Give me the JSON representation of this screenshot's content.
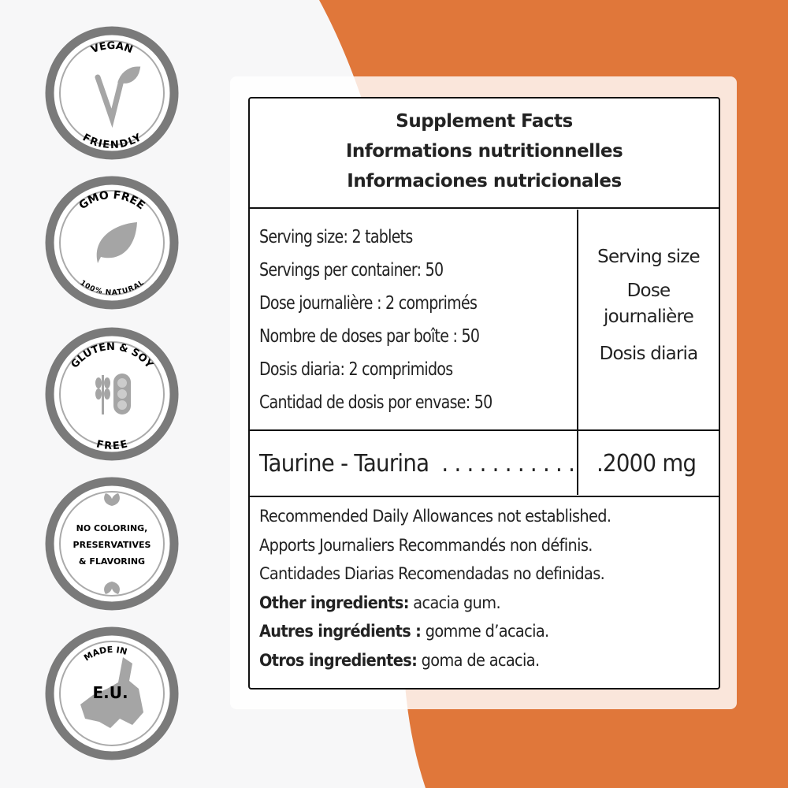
{
  "colors": {
    "accent": "#E0773A",
    "badge_ring": "#7a7a7a",
    "icon_gray": "#a5a5a5"
  },
  "badges": [
    {
      "top": "VEGAN",
      "bottom": "FRIENDLY",
      "icon": "vegan-v-leaf-icon"
    },
    {
      "top": "GMO FREE",
      "bottom": "100% NATURAL",
      "icon": "leaf-icon"
    },
    {
      "top": "GLUTEN & SOY",
      "bottom": "FREE",
      "icon": "wheat-soy-icon"
    },
    {
      "lines": [
        "NO COLORING,",
        "PRESERVATIVES",
        "& FLAVORING"
      ],
      "icon": "leaves-icon"
    },
    {
      "top": "MADE IN",
      "center": "E.U.",
      "icon": "europe-map-icon"
    }
  ],
  "facts": {
    "title": [
      "Supplement Facts",
      "Informations nutritionnelles",
      "Informaciones nutricionales"
    ],
    "serving": [
      "Serving size: 2 tablets",
      "Servings per container: 50",
      "Dose journalière : 2 comprimés",
      "Nombre de doses par boîte : 50",
      "Dosis diaria: 2 comprimidos",
      "Cantidad de dosis por envase: 50"
    ],
    "column_header": [
      "Serving size",
      "Dose",
      "journalière",
      "Dosis diaria"
    ],
    "ingredient": "Taurine - Taurina  . . . . . . . . . . .",
    "amount": ".2000 mg",
    "notes": [
      "Recommended Daily Allowances not established.",
      "Apports Journaliers Recommandés non définis.",
      "Cantidades Diarias Recomendadas no definidas."
    ],
    "other": [
      {
        "label": "Other ingredients:",
        "value": " acacia gum."
      },
      {
        "label": "Autres ingrédients :",
        "value": " gomme d’acacia."
      },
      {
        "label": "Otros ingredientes:",
        "value": " goma de acacia."
      }
    ]
  }
}
